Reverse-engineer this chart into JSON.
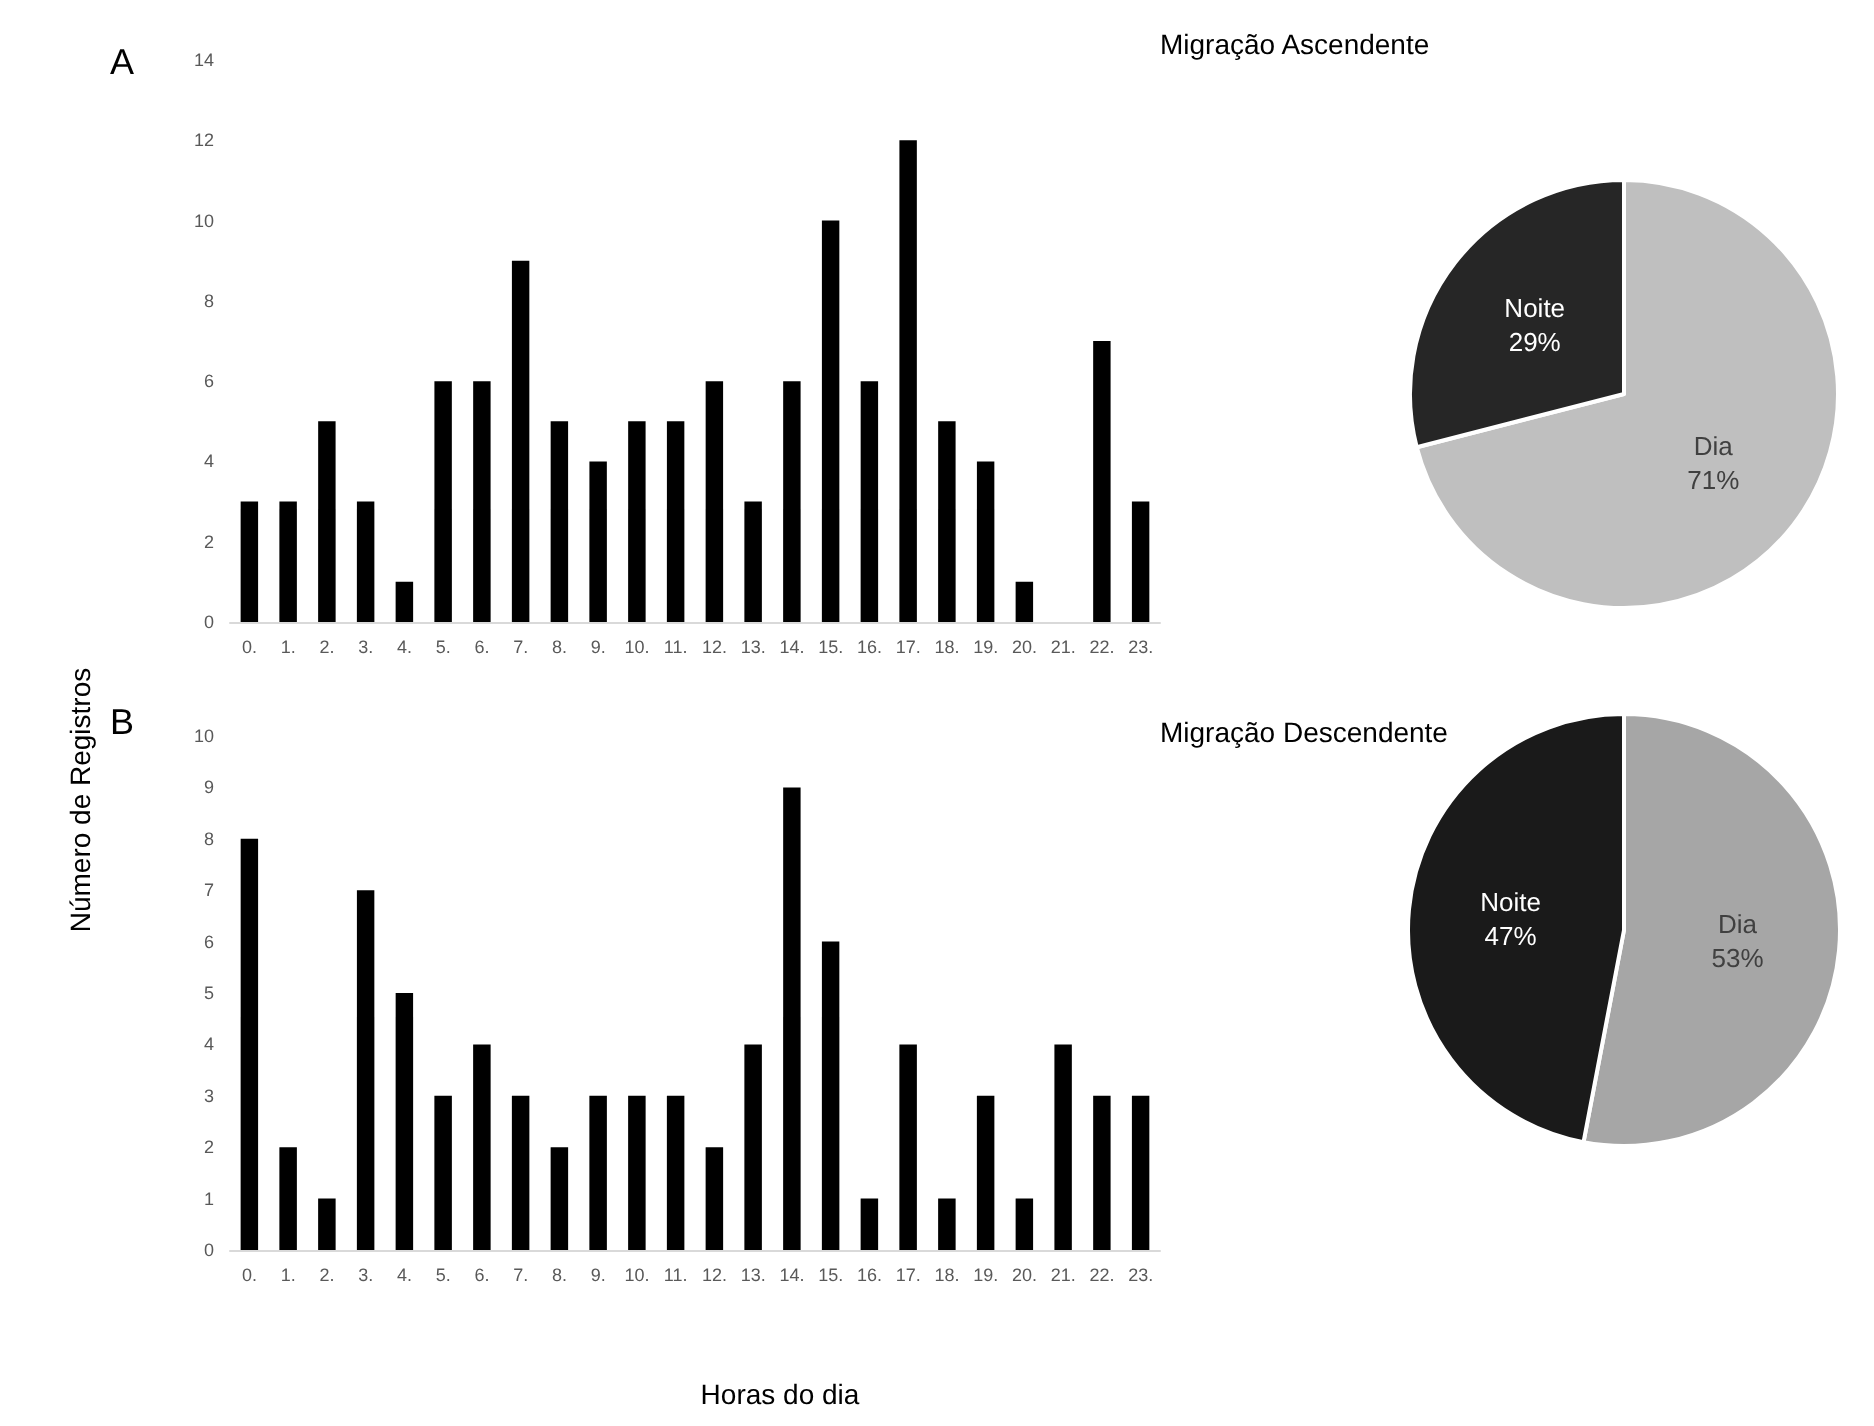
{
  "chart_data": [
    {
      "type": "bar",
      "annotations": [
        "A"
      ],
      "ylabel": "Número de Registros",
      "categories": [
        "0.",
        "1.",
        "2.",
        "3.",
        "4.",
        "5.",
        "6.",
        "7.",
        "8.",
        "9.",
        "10.",
        "11.",
        "12.",
        "13.",
        "14.",
        "15.",
        "16.",
        "17.",
        "18.",
        "19.",
        "20.",
        "21.",
        "22.",
        "23."
      ],
      "values": [
        3,
        3,
        5,
        3,
        1,
        6,
        6,
        9,
        5,
        4,
        5,
        5,
        6,
        3,
        6,
        10,
        6,
        12,
        5,
        4,
        1,
        0,
        7,
        3
      ],
      "color": "#000000",
      "ylim": [
        0,
        14
      ],
      "yticks": [
        0,
        2,
        4,
        6,
        8,
        10,
        12,
        14
      ],
      "grid": false
    },
    {
      "type": "pie",
      "title": "Migração Ascendente",
      "categories": [
        "Dia",
        "Noite"
      ],
      "values": [
        71,
        29
      ],
      "value_labels": [
        "71%",
        "29%"
      ],
      "colors": [
        "#bfbfbf",
        "#262626"
      ]
    },
    {
      "type": "bar",
      "annotations": [
        "B"
      ],
      "xlabel": "Horas do dia",
      "categories": [
        "0.",
        "1.",
        "2.",
        "3.",
        "4.",
        "5.",
        "6.",
        "7.",
        "8.",
        "9.",
        "10.",
        "11.",
        "12.",
        "13.",
        "14.",
        "15.",
        "16.",
        "17.",
        "18.",
        "19.",
        "20.",
        "21.",
        "22.",
        "23."
      ],
      "values": [
        8,
        2,
        1,
        7,
        5,
        3,
        4,
        3,
        2,
        3,
        3,
        3,
        2,
        4,
        9,
        6,
        1,
        4,
        1,
        3,
        1,
        4,
        3,
        3
      ],
      "color": "#000000",
      "ylim": [
        0,
        10
      ],
      "yticks": [
        0,
        1,
        2,
        3,
        4,
        5,
        6,
        7,
        8,
        9,
        10
      ],
      "grid": false
    },
    {
      "type": "pie",
      "title": "Migração Descendente",
      "categories": [
        "Dia",
        "Noite"
      ],
      "values": [
        53,
        47
      ],
      "value_labels": [
        "53%",
        "47%"
      ],
      "colors": [
        "#a6a6a6",
        "#1a1a1a"
      ]
    }
  ]
}
